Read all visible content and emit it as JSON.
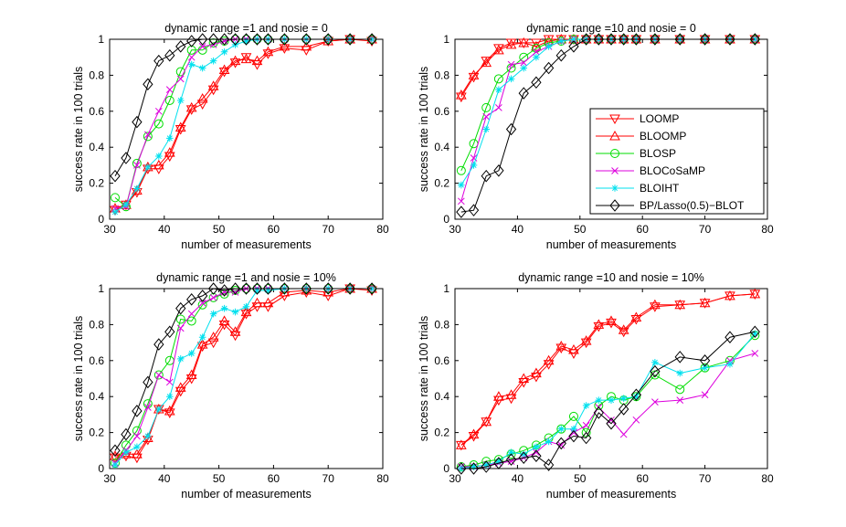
{
  "figure": {
    "legend_entries": [
      {
        "name": "LOOMP",
        "color": "#ff0000",
        "marker": "triangle-down"
      },
      {
        "name": "BLOOMP",
        "color": "#ff0000",
        "marker": "triangle-up"
      },
      {
        "name": "BLOSP",
        "color": "#00dd00",
        "marker": "circle"
      },
      {
        "name": "BLOCoSaMP",
        "color": "#dd00dd",
        "marker": "x"
      },
      {
        "name": "BLOIHT",
        "color": "#00e0ee",
        "marker": "star"
      },
      {
        "name": "BP/Lasso(0.5)−BLOT",
        "color": "#000000",
        "marker": "diamond"
      }
    ]
  },
  "chart_data": [
    {
      "type": "line",
      "title": "dynamic range =1 and nosie = 0",
      "xlabel": "number of measurements",
      "ylabel": "success rate in 100 trials",
      "xlim": [
        30,
        80
      ],
      "ylim": [
        0,
        1
      ],
      "xticks": [
        "30",
        "40",
        "50",
        "60",
        "70",
        "80"
      ],
      "yticks": [
        "0",
        "0.2",
        "0.4",
        "0.6",
        "0.8",
        "1"
      ],
      "x": [
        31,
        33,
        35,
        37,
        39,
        41,
        43,
        45,
        47,
        49,
        51,
        53,
        55,
        57,
        59,
        62,
        66,
        70,
        74,
        78
      ],
      "series": [
        {
          "name": "LOOMP",
          "values": [
            0.05,
            0.08,
            0.15,
            0.28,
            0.28,
            0.35,
            0.5,
            0.61,
            0.64,
            0.72,
            0.82,
            0.87,
            0.9,
            0.86,
            0.92,
            0.95,
            0.94,
            0.99,
            1.0,
            0.99
          ]
        },
        {
          "name": "BLOOMP",
          "values": [
            0.06,
            0.08,
            0.16,
            0.29,
            0.3,
            0.37,
            0.51,
            0.62,
            0.67,
            0.74,
            0.83,
            0.88,
            0.89,
            0.88,
            0.93,
            0.96,
            0.96,
            0.99,
            1.0,
            1.0
          ]
        },
        {
          "name": "BLOSP",
          "values": [
            0.12,
            0.07,
            0.31,
            0.46,
            0.53,
            0.66,
            0.82,
            0.94,
            0.94,
            0.98,
            0.99,
            1.0,
            1.0,
            1.0,
            1.0,
            1.0,
            1.0,
            1.0,
            1.0,
            1.0
          ]
        },
        {
          "name": "BLOCoSaMP",
          "values": [
            0.06,
            0.07,
            0.3,
            0.47,
            0.6,
            0.72,
            0.78,
            0.9,
            0.96,
            0.97,
            0.99,
            1.0,
            1.0,
            1.0,
            1.0,
            1.0,
            1.0,
            1.0,
            1.0,
            1.0
          ]
        },
        {
          "name": "BLOIHT",
          "values": [
            0.04,
            0.08,
            0.17,
            0.29,
            0.35,
            0.45,
            0.66,
            0.86,
            0.84,
            0.88,
            0.93,
            0.97,
            0.99,
            1.0,
            1.0,
            1.0,
            1.0,
            1.0,
            1.0,
            1.0
          ]
        },
        {
          "name": "BP/Lasso(0.5)−BLOT",
          "values": [
            0.24,
            0.34,
            0.54,
            0.75,
            0.88,
            0.91,
            0.96,
            0.99,
            1.0,
            1.0,
            1.0,
            1.0,
            1.0,
            1.0,
            1.0,
            1.0,
            1.0,
            1.0,
            1.0,
            1.0
          ]
        }
      ]
    },
    {
      "type": "line",
      "title": "dynamic range =10 and nosie = 0",
      "xlabel": "number of measurements",
      "ylabel": "success rate in 100 trials",
      "xlim": [
        30,
        80
      ],
      "ylim": [
        0,
        1
      ],
      "xticks": [
        "30",
        "40",
        "50",
        "60",
        "70",
        "80"
      ],
      "yticks": [
        "0",
        "0.2",
        "0.4",
        "0.6",
        "0.8",
        "1"
      ],
      "x": [
        31,
        33,
        35,
        37,
        39,
        41,
        43,
        45,
        47,
        49,
        51,
        53,
        55,
        57,
        59,
        62,
        66,
        70,
        74,
        78
      ],
      "series": [
        {
          "name": "LOOMP",
          "values": [
            0.68,
            0.79,
            0.88,
            0.95,
            0.98,
            0.98,
            0.98,
            1.0,
            1.0,
            1.0,
            1.0,
            1.0,
            1.0,
            1.0,
            1.0,
            1.0,
            1.0,
            1.0,
            1.0,
            1.0
          ]
        },
        {
          "name": "BLOOMP",
          "values": [
            0.69,
            0.8,
            0.87,
            0.94,
            0.97,
            0.98,
            0.96,
            0.99,
            1.0,
            1.0,
            1.0,
            1.0,
            1.0,
            1.0,
            1.0,
            1.0,
            1.0,
            1.0,
            1.0,
            1.0
          ]
        },
        {
          "name": "BLOSP",
          "values": [
            0.27,
            0.42,
            0.62,
            0.78,
            0.84,
            0.9,
            0.95,
            0.98,
            0.99,
            1.0,
            1.0,
            1.0,
            1.0,
            1.0,
            1.0,
            1.0,
            1.0,
            1.0,
            1.0,
            1.0
          ]
        },
        {
          "name": "BLOCoSaMP",
          "values": [
            0.1,
            0.34,
            0.57,
            0.62,
            0.86,
            0.87,
            0.93,
            0.96,
            0.99,
            1.0,
            1.0,
            1.0,
            1.0,
            1.0,
            1.0,
            1.0,
            1.0,
            1.0,
            1.0,
            1.0
          ]
        },
        {
          "name": "BLOIHT",
          "values": [
            0.19,
            0.3,
            0.5,
            0.72,
            0.78,
            0.84,
            0.9,
            0.96,
            0.99,
            1.0,
            1.0,
            1.0,
            1.0,
            1.0,
            1.0,
            1.0,
            1.0,
            1.0,
            1.0,
            1.0
          ]
        },
        {
          "name": "BP/Lasso(0.5)−BLOT",
          "values": [
            0.04,
            0.05,
            0.24,
            0.27,
            0.5,
            0.7,
            0.76,
            0.84,
            0.91,
            0.96,
            1.0,
            1.0,
            1.0,
            1.0,
            1.0,
            1.0,
            1.0,
            1.0,
            1.0,
            1.0
          ]
        }
      ]
    },
    {
      "type": "line",
      "title": "dynamic range =1 and nosie = 10%",
      "xlabel": "number of measurements",
      "ylabel": "success rate in 100 trials",
      "xlim": [
        30,
        80
      ],
      "ylim": [
        0,
        1
      ],
      "xticks": [
        "30",
        "40",
        "50",
        "60",
        "70",
        "80"
      ],
      "yticks": [
        "0",
        "0.2",
        "0.4",
        "0.6",
        "0.8",
        "1"
      ],
      "x": [
        31,
        33,
        35,
        37,
        39,
        41,
        43,
        45,
        47,
        49,
        51,
        53,
        55,
        57,
        59,
        62,
        66,
        70,
        74,
        78
      ],
      "series": [
        {
          "name": "LOOMP",
          "values": [
            0.06,
            0.07,
            0.06,
            0.16,
            0.33,
            0.31,
            0.43,
            0.5,
            0.68,
            0.7,
            0.8,
            0.74,
            0.86,
            0.9,
            0.9,
            0.96,
            0.98,
            0.96,
            1.0,
            0.99
          ]
        },
        {
          "name": "BLOOMP",
          "values": [
            0.07,
            0.08,
            0.08,
            0.17,
            0.33,
            0.32,
            0.45,
            0.52,
            0.69,
            0.73,
            0.82,
            0.76,
            0.87,
            0.92,
            0.92,
            0.98,
            0.99,
            0.98,
            1.0,
            1.0
          ]
        },
        {
          "name": "BLOSP",
          "values": [
            0.03,
            0.13,
            0.21,
            0.36,
            0.52,
            0.6,
            0.83,
            0.82,
            0.91,
            0.95,
            0.97,
            0.99,
            1.0,
            1.0,
            1.0,
            1.0,
            1.0,
            1.0,
            1.0,
            1.0
          ]
        },
        {
          "name": "BLOCoSaMP",
          "values": [
            0.03,
            0.1,
            0.18,
            0.34,
            0.52,
            0.48,
            0.78,
            0.86,
            0.92,
            0.95,
            0.98,
            0.98,
            1.0,
            1.0,
            1.0,
            1.0,
            1.0,
            1.0,
            1.0,
            1.0
          ]
        },
        {
          "name": "BLOIHT",
          "values": [
            0.02,
            0.09,
            0.12,
            0.18,
            0.33,
            0.4,
            0.61,
            0.64,
            0.73,
            0.86,
            0.89,
            0.87,
            0.9,
            0.99,
            0.99,
            1.0,
            1.0,
            1.0,
            1.0,
            1.0
          ]
        },
        {
          "name": "BP/Lasso(0.5)−BLOT",
          "values": [
            0.1,
            0.19,
            0.32,
            0.48,
            0.69,
            0.76,
            0.89,
            0.94,
            0.96,
            1.0,
            0.99,
            1.0,
            1.0,
            1.0,
            1.0,
            1.0,
            1.0,
            1.0,
            1.0,
            1.0
          ]
        }
      ]
    },
    {
      "type": "line",
      "title": "dynamic range =10 and nosie = 10%",
      "xlabel": "number of measurements",
      "ylabel": "success rate in 100 trials",
      "xlim": [
        30,
        80
      ],
      "ylim": [
        0,
        1
      ],
      "xticks": [
        "30",
        "40",
        "50",
        "60",
        "70",
        "80"
      ],
      "yticks": [
        "0",
        "0.2",
        "0.4",
        "0.6",
        "0.8",
        "1"
      ],
      "x": [
        31,
        33,
        35,
        37,
        39,
        41,
        43,
        45,
        47,
        49,
        51,
        53,
        55,
        57,
        59,
        62,
        66,
        70,
        74,
        78
      ],
      "series": [
        {
          "name": "LOOMP",
          "values": [
            0.13,
            0.18,
            0.26,
            0.38,
            0.39,
            0.48,
            0.51,
            0.58,
            0.67,
            0.64,
            0.7,
            0.79,
            0.81,
            0.76,
            0.83,
            0.9,
            0.91,
            0.92,
            0.96,
            0.97
          ]
        },
        {
          "name": "BLOOMP",
          "values": [
            0.13,
            0.19,
            0.26,
            0.4,
            0.41,
            0.5,
            0.53,
            0.6,
            0.68,
            0.66,
            0.71,
            0.8,
            0.82,
            0.77,
            0.84,
            0.91,
            0.91,
            0.92,
            0.96,
            0.97
          ]
        },
        {
          "name": "BLOSP",
          "values": [
            0.01,
            0.02,
            0.04,
            0.05,
            0.08,
            0.1,
            0.13,
            0.17,
            0.22,
            0.29,
            0.2,
            0.35,
            0.4,
            0.38,
            0.4,
            0.52,
            0.44,
            0.56,
            0.6,
            0.74
          ]
        },
        {
          "name": "BLOCoSaMP",
          "values": [
            0.01,
            0.01,
            0.02,
            0.03,
            0.04,
            0.06,
            0.09,
            0.15,
            0.13,
            0.2,
            0.24,
            0.34,
            0.27,
            0.19,
            0.27,
            0.37,
            0.38,
            0.41,
            0.6,
            0.64
          ]
        },
        {
          "name": "BLOIHT",
          "values": [
            0.0,
            0.01,
            0.02,
            0.04,
            0.09,
            0.08,
            0.12,
            0.15,
            0.22,
            0.22,
            0.35,
            0.38,
            0.38,
            0.39,
            0.4,
            0.59,
            0.53,
            0.56,
            0.58,
            0.75
          ]
        },
        {
          "name": "BP/Lasso(0.5)−BLOT",
          "values": [
            0.0,
            0.0,
            0.01,
            0.03,
            0.05,
            0.06,
            0.07,
            0.02,
            0.14,
            0.18,
            0.17,
            0.31,
            0.25,
            0.33,
            0.41,
            0.54,
            0.62,
            0.6,
            0.73,
            0.76
          ]
        }
      ]
    }
  ]
}
